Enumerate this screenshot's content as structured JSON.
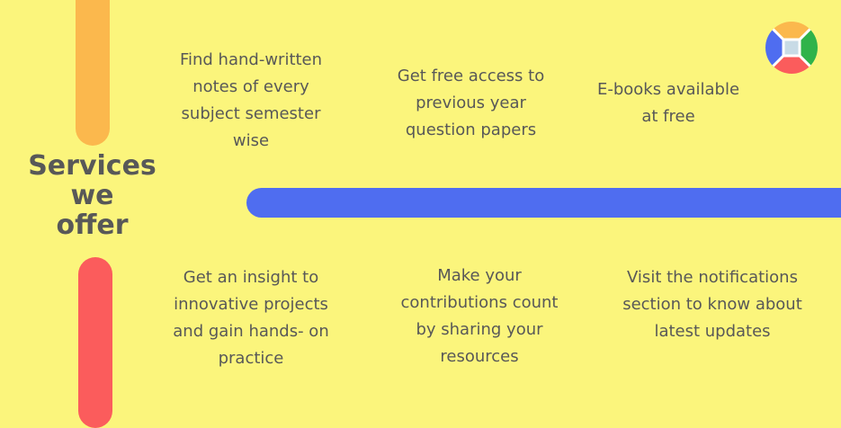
{
  "heading": {
    "line1": "Services",
    "line2": "we",
    "line3": "offer"
  },
  "services": [
    {
      "text": "Find hand-written notes of every subject semester wise"
    },
    {
      "text": "Get free access to previous year question papers"
    },
    {
      "text": "E-books available at free"
    },
    {
      "text": "Get an insight to innovative projects and gain hands- on practice"
    },
    {
      "text": "Make your contributions count by sharing your resources"
    },
    {
      "text": "Visit the notifications section to know about latest updates"
    }
  ],
  "colors": {
    "background": "#fbf57c",
    "accent_orange": "#fbb84d",
    "accent_red": "#fb5c5c",
    "accent_blue": "#4f6df0",
    "accent_green": "#2fb34a",
    "text": "#585858"
  },
  "logo": {
    "icon": "four-color-circle-logo"
  }
}
